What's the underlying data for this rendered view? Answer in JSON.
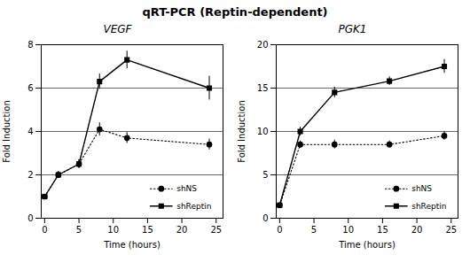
{
  "title": "qRT-PCR (Reptin-dependent)",
  "chart_data": [
    {
      "type": "line",
      "title": "VEGF",
      "x_label": "Time (hours)",
      "y_label": "Fold Induction",
      "xlim": [
        -0.5,
        26
      ],
      "xticks": [
        0,
        5,
        10,
        15,
        20,
        25
      ],
      "ylim": [
        0,
        8
      ],
      "yticks": [
        0,
        2,
        4,
        6,
        8
      ],
      "hlines": [
        2,
        4,
        6
      ],
      "legend": "lower right",
      "series": [
        {
          "name": "shReptin",
          "color": "#000000",
          "marker": "square",
          "line_style": "solid",
          "x": [
            0,
            2,
            5,
            8,
            12,
            24
          ],
          "values": [
            1.0,
            2.0,
            2.5,
            6.3,
            7.3,
            6.0
          ],
          "errors": [
            0.1,
            0.15,
            0.2,
            0.35,
            0.4,
            0.55
          ]
        },
        {
          "name": "shNS",
          "color": "#000000",
          "marker": "circle",
          "line_style": "dotted",
          "x": [
            0,
            2,
            5,
            8,
            12,
            24
          ],
          "values": [
            1.0,
            2.0,
            2.5,
            4.1,
            3.7,
            3.4
          ],
          "errors": [
            0.1,
            0.15,
            0.2,
            0.3,
            0.25,
            0.25
          ]
        }
      ]
    },
    {
      "type": "line",
      "title": "PGK1",
      "x_label": "Time (hours)",
      "y_label": "Fold Induction",
      "xlim": [
        -0.5,
        26
      ],
      "xticks": [
        0,
        5,
        10,
        15,
        20,
        25
      ],
      "ylim": [
        0,
        20
      ],
      "yticks": [
        0,
        5,
        10,
        15,
        20
      ],
      "hlines": [
        5,
        10,
        15
      ],
      "legend": "lower right",
      "series": [
        {
          "name": "shReptin",
          "color": "#000000",
          "marker": "square",
          "line_style": "solid",
          "x": [
            0,
            3,
            8,
            16,
            24
          ],
          "values": [
            1.5,
            10.0,
            14.5,
            15.8,
            17.5
          ],
          "errors": [
            0.2,
            0.5,
            0.6,
            0.5,
            0.8
          ]
        },
        {
          "name": "shNS",
          "color": "#000000",
          "marker": "circle",
          "line_style": "dotted",
          "x": [
            0,
            3,
            8,
            16,
            24
          ],
          "values": [
            1.5,
            8.5,
            8.5,
            8.5,
            9.5
          ],
          "errors": [
            0.2,
            0.4,
            0.5,
            0.4,
            0.5
          ]
        }
      ]
    }
  ]
}
